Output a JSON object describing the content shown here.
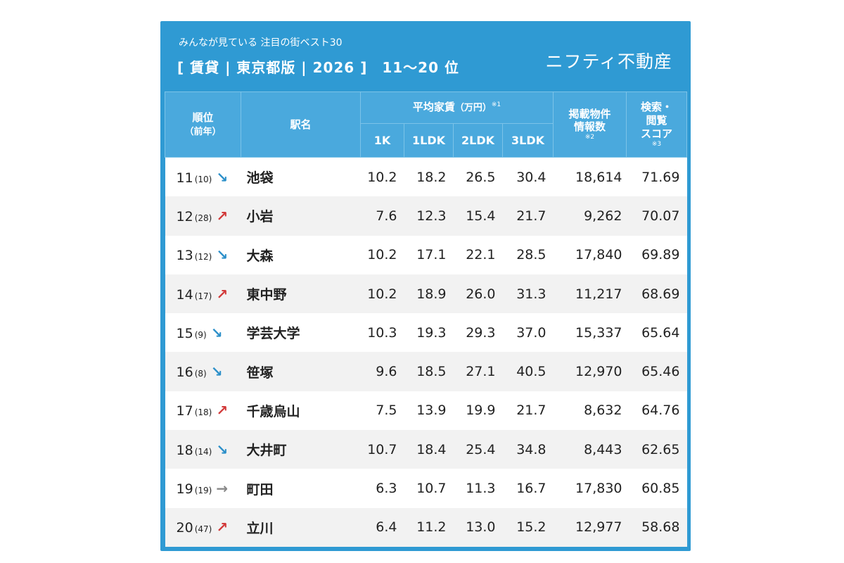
{
  "header": {
    "subtitle": "みんなが見ている 注目の街ベスト30",
    "title": "[ 賃貸 | 東京都版 | 2026 ]　11〜20 位",
    "brand": "ニフティ不動産"
  },
  "columns": {
    "rank": "順位",
    "rank_prev": "（前年）",
    "station": "駅名",
    "rent_group": "平均家賃",
    "rent_unit": "（万円）",
    "rent_note": "※1",
    "rent_1k": "1K",
    "rent_1ldk": "1LDK",
    "rent_2ldk": "2LDK",
    "rent_3ldk": "3LDK",
    "listings_line1": "掲載物件",
    "listings_line2": "情報数",
    "listings_note": "※2",
    "score_line1": "検索・",
    "score_line2": "閲覧",
    "score_line3": "スコア",
    "score_note": "※3"
  },
  "colors": {
    "background": "#2f9ad3",
    "header_cell": "#4aa9dd",
    "row_alt": "#f2f2f2",
    "arrow_up": "#d23a3a",
    "arrow_down": "#2b8fc9",
    "arrow_flat": "#888888"
  },
  "rows": [
    {
      "rank": "11",
      "prev": "(10)",
      "arrow": "↘",
      "trend": "down",
      "station": "池袋",
      "k1": "10.2",
      "ldk1": "18.2",
      "ldk2": "26.5",
      "ldk3": "30.4",
      "listings": "18,614",
      "score": "71.69"
    },
    {
      "rank": "12",
      "prev": "(28)",
      "arrow": "↗",
      "trend": "up",
      "station": "小岩",
      "k1": "7.6",
      "ldk1": "12.3",
      "ldk2": "15.4",
      "ldk3": "21.7",
      "listings": "9,262",
      "score": "70.07"
    },
    {
      "rank": "13",
      "prev": "(12)",
      "arrow": "↘",
      "trend": "down",
      "station": "大森",
      "k1": "10.2",
      "ldk1": "17.1",
      "ldk2": "22.1",
      "ldk3": "28.5",
      "listings": "17,840",
      "score": "69.89"
    },
    {
      "rank": "14",
      "prev": "(17)",
      "arrow": "↗",
      "trend": "up",
      "station": "東中野",
      "k1": "10.2",
      "ldk1": "18.9",
      "ldk2": "26.0",
      "ldk3": "31.3",
      "listings": "11,217",
      "score": "68.69"
    },
    {
      "rank": "15",
      "prev": "(9)",
      "arrow": "↘",
      "trend": "down",
      "station": "学芸大学",
      "k1": "10.3",
      "ldk1": "19.3",
      "ldk2": "29.3",
      "ldk3": "37.0",
      "listings": "15,337",
      "score": "65.64"
    },
    {
      "rank": "16",
      "prev": "(8)",
      "arrow": "↘",
      "trend": "down",
      "station": "笹塚",
      "k1": "9.6",
      "ldk1": "18.5",
      "ldk2": "27.1",
      "ldk3": "40.5",
      "listings": "12,970",
      "score": "65.46"
    },
    {
      "rank": "17",
      "prev": "(18)",
      "arrow": "↗",
      "trend": "up",
      "station": "千歳烏山",
      "k1": "7.5",
      "ldk1": "13.9",
      "ldk2": "19.9",
      "ldk3": "21.7",
      "listings": "8,632",
      "score": "64.76"
    },
    {
      "rank": "18",
      "prev": "(14)",
      "arrow": "↘",
      "trend": "down",
      "station": "大井町",
      "k1": "10.7",
      "ldk1": "18.4",
      "ldk2": "25.4",
      "ldk3": "34.8",
      "listings": "8,443",
      "score": "62.65"
    },
    {
      "rank": "19",
      "prev": "(19)",
      "arrow": "→",
      "trend": "flat",
      "station": "町田",
      "k1": "6.3",
      "ldk1": "10.7",
      "ldk2": "11.3",
      "ldk3": "16.7",
      "listings": "17,830",
      "score": "60.85"
    },
    {
      "rank": "20",
      "prev": "(47)",
      "arrow": "↗",
      "trend": "up",
      "station": "立川",
      "k1": "6.4",
      "ldk1": "11.2",
      "ldk2": "13.0",
      "ldk3": "15.2",
      "listings": "12,977",
      "score": "58.68"
    }
  ]
}
